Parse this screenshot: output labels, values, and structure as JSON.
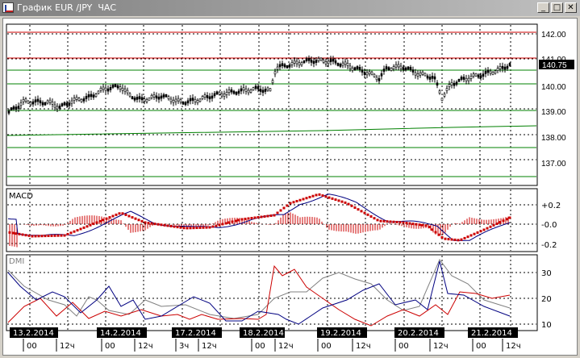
{
  "window": {
    "title": "График EUR /JPY  ЧАС",
    "buttons": {
      "minimize": "_",
      "maximize": "□",
      "close": "✕"
    }
  },
  "main_panel": {
    "price_labels": [
      "142.00",
      "141.00",
      "140.00",
      "139.00",
      "138.00",
      "137.00"
    ],
    "current_price": "140.75"
  },
  "macd_panel": {
    "label": "MACD",
    "scale_labels": [
      "+0.2",
      "-0.0",
      "-0.2"
    ]
  },
  "dmi_panel": {
    "label": "DMI",
    "scale_labels": [
      "30",
      "20",
      "10"
    ]
  },
  "date_labels": [
    "13.2.2014",
    "14.2.2014",
    "17.2.2014",
    "18.2.2014",
    "19.2.2014",
    "20.2.2014",
    "21.2.2014"
  ],
  "hour_labels": [
    "00",
    "12ч",
    "00",
    "12ч",
    "3ч",
    "12ч",
    "00",
    "12ч",
    "00",
    "12ч",
    "00",
    "12ч",
    "00",
    "12ч"
  ],
  "colors": {
    "candle": "#000000",
    "bollinger": "#cc0000",
    "support": "#008000",
    "macd_line": "#000080",
    "signal_dots": "#cc0000",
    "histogram": "#cc0000",
    "dmi_plus": "#cc0000",
    "dmi_minus": "#000080",
    "adx": "#808080"
  }
}
